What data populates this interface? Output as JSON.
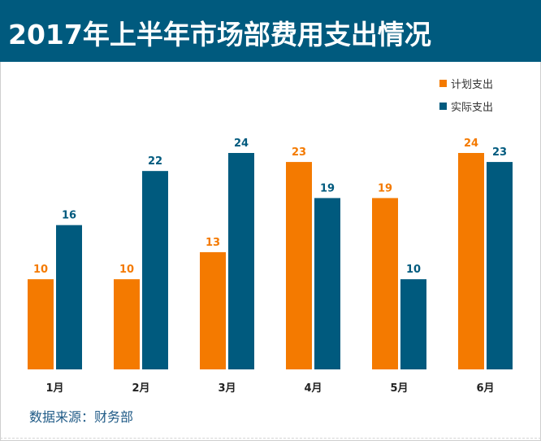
{
  "title": "2017年上半年市场部费用支出情况",
  "source_text": "数据来源：财务部",
  "colors": {
    "header": "#005a7e",
    "planned": "#f47a00",
    "actual": "#005a7e"
  },
  "chart_data": {
    "type": "bar",
    "title": "2017年上半年市场部费用支出情况",
    "categories": [
      "1月",
      "2月",
      "3月",
      "4月",
      "5月",
      "6月"
    ],
    "series": [
      {
        "name": "计划支出",
        "color": "#f47a00",
        "values": [
          10,
          10,
          13,
          23,
          19,
          24
        ]
      },
      {
        "name": "实际支出",
        "color": "#005a7e",
        "values": [
          16,
          22,
          24,
          19,
          10,
          23
        ]
      }
    ],
    "ylim": [
      0,
      24
    ],
    "xlabel": "",
    "ylabel": "",
    "legend_position": "top-right",
    "grid": false
  }
}
